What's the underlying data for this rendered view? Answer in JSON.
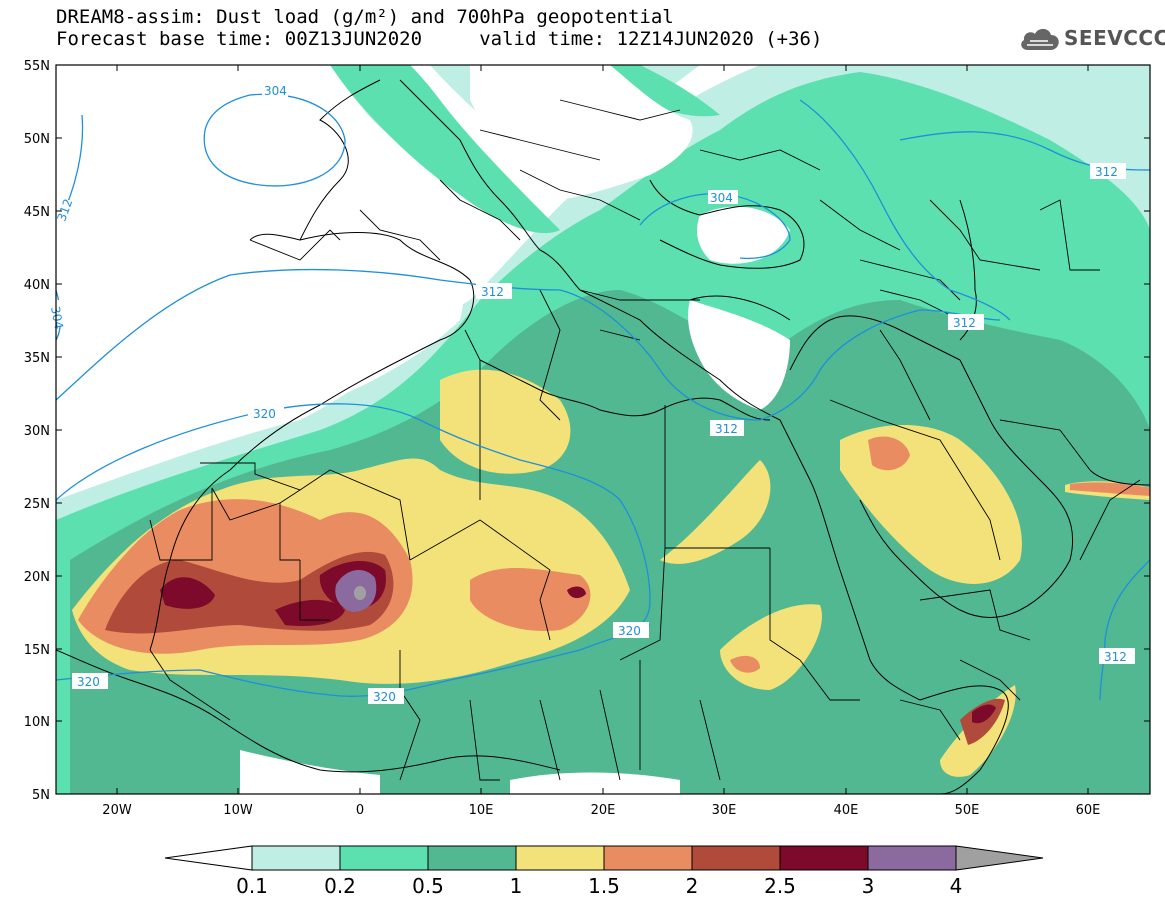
{
  "header": {
    "title_line1": "DREAM8-assim: Dust load (g/m²) and 700hPa geopotential",
    "title_line2": "Forecast base time: 00Z13JUN2020     valid time: 12Z14JUN2020 (+36)"
  },
  "logo": {
    "text": "SEEVCCC"
  },
  "lat_labels": [
    "55N",
    "50N",
    "45N",
    "40N",
    "35N",
    "30N",
    "25N",
    "20N",
    "15N",
    "10N",
    "5N"
  ],
  "lon_labels": [
    "20W",
    "10W",
    "0",
    "10E",
    "20E",
    "30E",
    "40E",
    "50E",
    "60E"
  ],
  "contour_labels": [
    "304",
    "312",
    "304",
    "312",
    "312",
    "320",
    "312",
    "312",
    "320",
    "320",
    "320",
    "312"
  ],
  "colorbar": {
    "ticks": [
      "0.1",
      "0.2",
      "0.5",
      "1",
      "1.5",
      "2",
      "2.5",
      "3",
      "4"
    ],
    "colors": [
      "#ffffff",
      "#bfeee4",
      "#5ce0b0",
      "#52b892",
      "#f3e27a",
      "#e98c62",
      "#b04a3a",
      "#7d0a2a",
      "#8b6aa0",
      "#a0a0a0"
    ]
  },
  "colors": {
    "land": "#ffffff",
    "contour": "#1E90D8",
    "border": "#000000"
  }
}
